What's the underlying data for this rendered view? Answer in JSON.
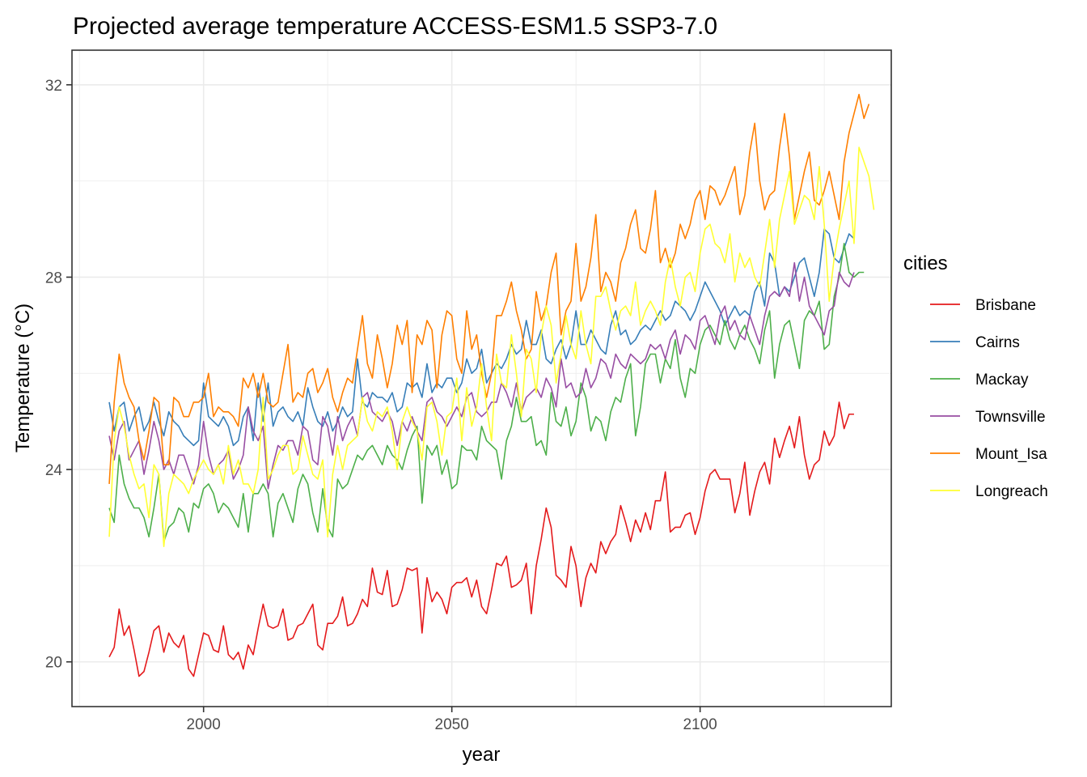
{
  "chart_data": {
    "type": "line",
    "title": "Projected average temperature ACCESS-ESM1.5 SSP3-7.0",
    "xlabel": "year",
    "ylabel": "Temperature (°C)",
    "xlim": [
      1973.5,
      2138.5
    ],
    "ylim": [
      19.07,
      32.72
    ],
    "x_ticks": [
      2000,
      2050,
      2100
    ],
    "x_tick_labels": [
      "2000",
      "2050",
      "2100"
    ],
    "x_minor_ticks": [
      1975,
      2025,
      2075,
      2125
    ],
    "y_ticks": [
      20,
      24,
      28,
      32
    ],
    "y_tick_labels": [
      "20",
      "24",
      "28",
      "32"
    ],
    "y_minor_ticks": [
      22,
      26,
      30
    ],
    "grid": true,
    "legend": {
      "title": "cities",
      "position": "right"
    },
    "x_start": 1981,
    "x_end": 2131,
    "series": [
      {
        "name": "Brisbane",
        "color": "#E41A1C",
        "values": [
          20.1,
          20.3,
          21.1,
          20.55,
          20.75,
          20.25,
          19.7,
          19.8,
          20.2,
          20.65,
          20.75,
          20.2,
          20.6,
          20.4,
          20.3,
          20.55,
          19.85,
          19.7,
          20.15,
          20.6,
          20.55,
          20.25,
          20.2,
          20.75,
          20.15,
          20.05,
          20.2,
          19.85,
          20.35,
          20.15,
          20.7,
          21.2,
          20.75,
          20.7,
          20.75,
          21.1,
          20.45,
          20.5,
          20.75,
          20.8,
          21.0,
          21.2,
          20.35,
          20.25,
          20.8,
          20.8,
          20.95,
          21.35,
          20.75,
          20.8,
          21.0,
          21.3,
          21.15,
          21.95,
          21.45,
          21.4,
          21.9,
          21.15,
          21.2,
          21.5,
          21.95,
          21.9,
          21.95,
          20.6,
          21.75,
          21.25,
          21.45,
          21.3,
          21.0,
          21.55,
          21.65,
          21.65,
          21.75,
          21.35,
          21.7,
          21.15,
          21.0,
          21.5,
          22.05,
          22.0,
          22.2,
          21.55,
          21.6,
          21.7,
          22.05,
          21.0,
          22.0,
          22.55,
          23.2,
          22.8,
          21.8,
          21.7,
          21.55,
          22.4,
          22.0,
          21.15,
          21.75,
          22.05,
          21.85,
          22.5,
          22.25,
          22.5,
          22.65,
          23.25,
          22.9,
          22.5,
          22.95,
          22.7,
          23.1,
          22.75,
          23.35,
          23.35,
          23.95,
          22.7,
          22.8,
          22.8,
          23.05,
          23.1,
          22.65,
          23.0,
          23.55,
          23.9,
          24.0,
          23.8,
          23.8,
          23.8,
          23.1,
          23.5,
          24.15,
          23.05,
          23.55,
          23.95,
          24.15,
          23.7,
          24.65,
          24.25,
          24.6,
          24.9,
          24.45,
          25.1,
          24.3,
          23.8,
          24.1,
          24.2,
          24.8,
          24.5,
          24.7,
          25.4,
          24.85,
          25.15,
          25.15
        ]
      },
      {
        "name": "Cairns",
        "color": "#377EB8",
        "values": [
          25.4,
          24.8,
          25.3,
          25.4,
          24.8,
          25.1,
          25.3,
          24.8,
          25.0,
          25.4,
          25.0,
          24.7,
          25.2,
          25.0,
          24.9,
          24.7,
          24.6,
          24.5,
          24.6,
          25.8,
          25.1,
          25.0,
          24.9,
          25.1,
          24.9,
          24.5,
          24.6,
          25.1,
          25.3,
          24.6,
          25.8,
          25.0,
          25.8,
          24.9,
          25.2,
          25.3,
          25.1,
          25.0,
          25.2,
          24.9,
          25.7,
          25.3,
          25.0,
          24.9,
          25.2,
          24.8,
          25.0,
          25.3,
          25.1,
          25.2,
          26.3,
          25.4,
          25.3,
          25.6,
          25.5,
          25.5,
          25.4,
          25.6,
          25.2,
          25.3,
          25.8,
          25.7,
          25.8,
          25.5,
          26.2,
          25.6,
          25.8,
          25.7,
          25.9,
          25.9,
          25.6,
          25.8,
          26.3,
          26.0,
          26.1,
          26.5,
          25.8,
          26.0,
          26.2,
          26.1,
          26.3,
          26.6,
          26.4,
          26.5,
          27.1,
          26.6,
          26.6,
          26.9,
          26.3,
          26.2,
          26.5,
          26.7,
          26.3,
          26.6,
          27.3,
          26.6,
          26.6,
          26.9,
          26.7,
          26.5,
          26.4,
          27.0,
          27.3,
          26.8,
          26.9,
          26.6,
          26.7,
          26.9,
          27.0,
          26.9,
          27.1,
          27.3,
          27.1,
          27.2,
          27.5,
          27.4,
          27.3,
          27.1,
          27.3,
          27.6,
          27.9,
          27.7,
          27.5,
          27.3,
          27.0,
          27.2,
          27.4,
          27.2,
          27.3,
          27.2,
          27.7,
          27.9,
          27.4,
          28.5,
          28.3,
          27.6,
          27.8,
          27.7,
          28.0,
          28.3,
          28.4,
          28.0,
          27.6,
          28.1,
          29.0,
          28.9,
          28.4,
          28.3,
          28.6,
          28.9,
          28.8
        ]
      },
      {
        "name": "Mackay",
        "color": "#4DAF4A",
        "values": [
          23.2,
          22.9,
          24.3,
          23.7,
          23.4,
          23.2,
          23.2,
          23.0,
          22.6,
          23.2,
          23.9,
          22.5,
          22.8,
          22.9,
          23.2,
          23.1,
          22.7,
          23.3,
          23.2,
          23.6,
          23.7,
          23.5,
          23.1,
          23.3,
          23.2,
          23.0,
          22.8,
          23.5,
          22.7,
          23.5,
          23.5,
          23.7,
          23.5,
          22.6,
          23.3,
          23.5,
          23.2,
          22.9,
          23.6,
          23.9,
          23.7,
          23.1,
          22.7,
          23.6,
          22.8,
          22.6,
          23.8,
          23.6,
          23.7,
          24.0,
          24.3,
          24.2,
          24.4,
          24.5,
          24.3,
          24.1,
          24.5,
          24.3,
          24.2,
          24.0,
          24.4,
          24.7,
          24.9,
          23.3,
          24.5,
          24.3,
          24.5,
          23.9,
          24.2,
          23.6,
          23.7,
          24.5,
          24.4,
          24.4,
          24.2,
          24.9,
          24.6,
          24.5,
          24.4,
          23.8,
          24.6,
          24.9,
          25.5,
          25.0,
          25.0,
          25.1,
          24.5,
          24.6,
          24.3,
          25.6,
          25.0,
          24.9,
          25.3,
          24.7,
          25.0,
          25.8,
          25.5,
          24.8,
          25.1,
          25.0,
          24.6,
          25.2,
          25.5,
          25.4,
          25.9,
          26.2,
          24.7,
          25.3,
          26.2,
          26.4,
          26.4,
          25.8,
          26.3,
          26.1,
          26.7,
          25.9,
          25.5,
          26.1,
          26.0,
          26.6,
          26.9,
          27.0,
          26.8,
          26.6,
          27.1,
          26.7,
          26.5,
          26.8,
          27.0,
          26.7,
          26.5,
          26.2,
          26.9,
          27.3,
          25.9,
          26.6,
          27.0,
          27.1,
          26.6,
          26.1,
          27.1,
          27.3,
          27.2,
          27.5,
          26.5,
          26.6,
          27.6,
          28.0,
          28.7,
          28.1,
          28.0,
          28.1,
          28.1
        ]
      },
      {
        "name": "Townsville",
        "color": "#984EA3",
        "values": [
          24.7,
          24.2,
          24.8,
          25.0,
          24.2,
          24.4,
          24.6,
          23.9,
          24.4,
          25.0,
          24.6,
          24.0,
          24.2,
          23.9,
          24.3,
          24.3,
          24.0,
          23.7,
          24.1,
          25.0,
          24.3,
          23.9,
          24.1,
          24.2,
          24.4,
          23.8,
          24.0,
          24.3,
          25.3,
          24.8,
          24.6,
          24.9,
          23.6,
          24.1,
          24.5,
          24.4,
          24.6,
          24.6,
          24.3,
          24.9,
          24.8,
          24.2,
          24.1,
          25.1,
          24.9,
          24.3,
          25.1,
          24.6,
          24.9,
          25.1,
          24.7,
          25.5,
          25.6,
          25.2,
          25.1,
          25.0,
          25.2,
          25.0,
          24.5,
          25.0,
          24.8,
          25.1,
          24.8,
          24.6,
          25.4,
          25.5,
          25.2,
          25.1,
          24.9,
          25.1,
          25.3,
          25.1,
          25.5,
          25.6,
          25.2,
          25.1,
          25.2,
          25.4,
          25.4,
          25.8,
          25.6,
          25.3,
          25.8,
          25.2,
          25.5,
          25.6,
          25.7,
          25.5,
          25.9,
          25.7,
          25.3,
          26.3,
          25.7,
          25.8,
          25.5,
          25.6,
          26.1,
          25.7,
          25.9,
          26.3,
          26.2,
          25.9,
          26.4,
          26.2,
          26.1,
          26.4,
          26.3,
          26.2,
          26.3,
          26.6,
          26.5,
          26.6,
          26.3,
          26.7,
          26.9,
          26.4,
          26.8,
          26.7,
          26.5,
          27.1,
          27.2,
          26.9,
          26.6,
          27.2,
          27.4,
          26.9,
          27.1,
          26.8,
          26.7,
          27.2,
          26.9,
          26.6,
          27.2,
          27.6,
          27.7,
          27.6,
          27.8,
          27.6,
          28.3,
          27.5,
          28.0,
          27.4,
          27.2,
          27.0,
          26.8,
          27.3,
          27.4,
          28.1,
          27.9,
          27.8,
          28.1
        ]
      },
      {
        "name": "Mount_Isa",
        "color": "#FF7F00",
        "values": [
          23.7,
          25.4,
          26.4,
          25.8,
          25.5,
          25.3,
          24.6,
          24.2,
          24.8,
          25.5,
          25.4,
          24.1,
          24.1,
          25.5,
          25.4,
          25.1,
          25.1,
          25.4,
          25.4,
          25.5,
          26.0,
          25.1,
          25.3,
          25.2,
          25.2,
          25.1,
          24.9,
          25.9,
          25.7,
          26.0,
          25.5,
          26.0,
          25.4,
          25.3,
          25.4,
          26.0,
          26.6,
          25.4,
          25.6,
          25.5,
          26.0,
          26.1,
          25.6,
          25.8,
          26.1,
          25.5,
          25.2,
          25.6,
          25.9,
          25.8,
          26.5,
          27.2,
          26.2,
          25.9,
          26.8,
          26.3,
          25.7,
          26.2,
          27.0,
          26.6,
          27.1,
          25.6,
          26.8,
          26.6,
          27.1,
          26.9,
          25.7,
          26.8,
          27.3,
          27.2,
          26.3,
          26.0,
          27.3,
          26.5,
          26.8,
          26.0,
          25.5,
          26.0,
          27.2,
          27.2,
          27.5,
          27.9,
          27.3,
          26.9,
          26.3,
          26.5,
          27.7,
          27.1,
          27.4,
          28.1,
          28.5,
          26.8,
          27.3,
          27.5,
          28.7,
          27.5,
          27.8,
          28.4,
          29.3,
          27.7,
          28.1,
          27.9,
          27.5,
          28.3,
          28.6,
          29.1,
          29.4,
          28.6,
          28.5,
          29.0,
          29.8,
          28.3,
          28.6,
          28.2,
          28.5,
          29.1,
          28.8,
          29.1,
          29.6,
          29.8,
          29.2,
          29.9,
          29.8,
          29.5,
          29.7,
          30.0,
          30.3,
          29.3,
          29.7,
          30.6,
          31.2,
          30.0,
          29.4,
          29.7,
          29.8,
          30.7,
          31.4,
          30.5,
          29.2,
          29.7,
          30.2,
          30.6,
          29.6,
          29.5,
          29.8,
          30.2,
          29.7,
          29.2,
          30.4,
          31.0,
          31.4,
          31.8,
          31.3,
          31.6
        ]
      },
      {
        "name": "Longreach",
        "color": "#FFFF33",
        "values": [
          22.6,
          24.6,
          25.3,
          24.9,
          24.3,
          23.9,
          23.6,
          23.7,
          23.0,
          24.1,
          23.9,
          22.4,
          23.5,
          23.9,
          23.8,
          23.7,
          23.5,
          23.8,
          24.0,
          24.2,
          24.0,
          23.9,
          24.1,
          23.7,
          24.5,
          23.9,
          24.2,
          23.7,
          23.7,
          23.5,
          24.0,
          25.5,
          23.8,
          24.0,
          24.3,
          24.5,
          24.5,
          23.9,
          24.0,
          24.7,
          24.3,
          23.9,
          23.8,
          24.2,
          22.6,
          23.9,
          24.5,
          24.0,
          24.5,
          24.6,
          24.7,
          25.5,
          25.0,
          24.8,
          25.2,
          25.1,
          25.3,
          24.8,
          24.0,
          25.0,
          25.3,
          25.0,
          24.8,
          24.2,
          25.3,
          25.4,
          25.0,
          24.3,
          25.1,
          25.2,
          25.9,
          24.6,
          25.7,
          24.9,
          25.3,
          26.2,
          25.3,
          24.6,
          26.4,
          25.8,
          25.7,
          26.8,
          26.0,
          25.1,
          26.5,
          26.3,
          25.6,
          26.8,
          27.4,
          27.0,
          25.8,
          26.4,
          27.2,
          26.6,
          26.3,
          27.3,
          26.6,
          26.2,
          27.6,
          27.6,
          27.8,
          27.3,
          26.9,
          27.3,
          27.4,
          27.2,
          27.9,
          27.0,
          27.3,
          27.5,
          27.3,
          27.0,
          27.9,
          28.4,
          27.8,
          27.4,
          28.0,
          28.1,
          27.7,
          28.5,
          29.0,
          29.1,
          28.7,
          28.6,
          28.3,
          28.9,
          27.9,
          28.5,
          28.2,
          28.4,
          28.0,
          27.8,
          28.5,
          29.2,
          28.2,
          29.2,
          29.7,
          30.2,
          29.1,
          29.4,
          29.7,
          29.6,
          29.2,
          30.3,
          29.1,
          27.5,
          28.4,
          29.0,
          29.5,
          30.0,
          28.7,
          30.7,
          30.4,
          30.1,
          29.4
        ]
      }
    ]
  }
}
